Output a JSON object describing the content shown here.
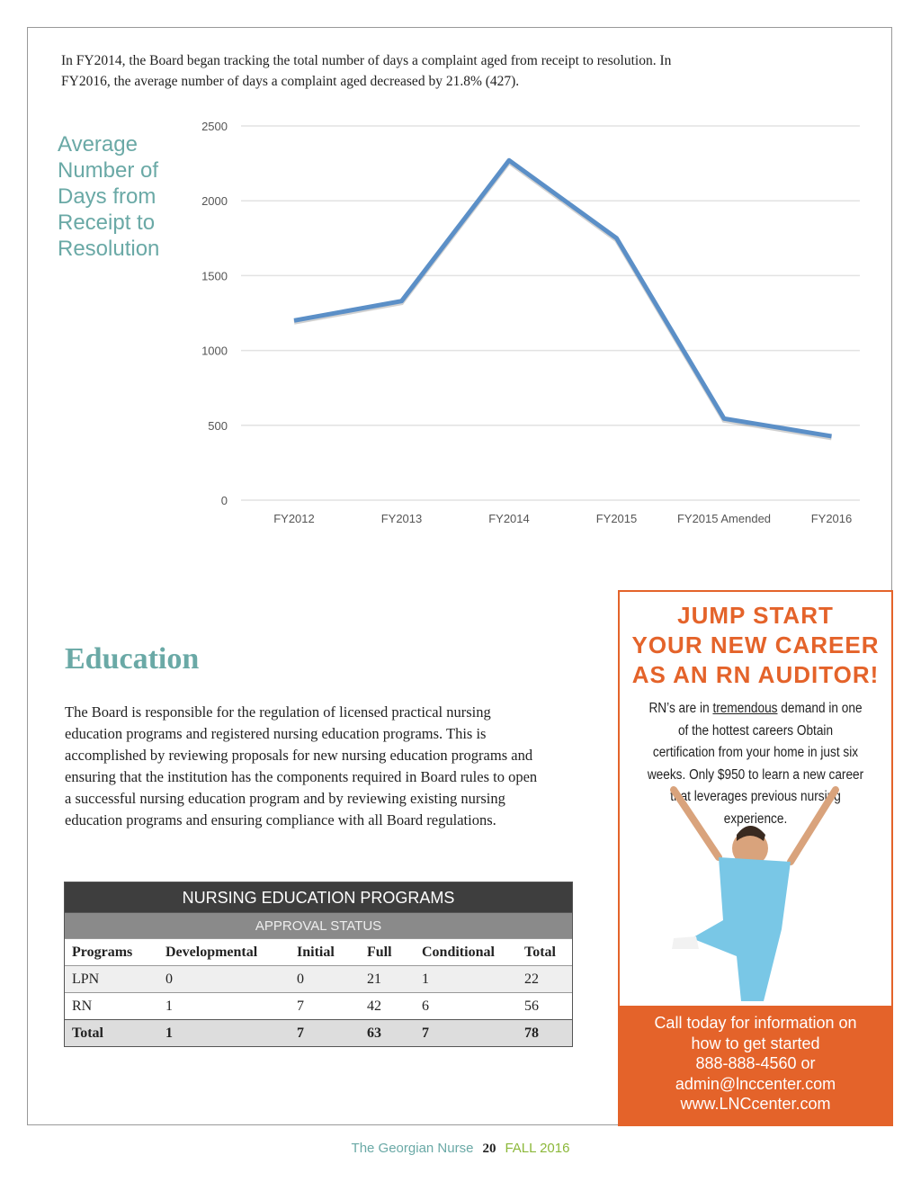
{
  "intro": "In FY2014, the Board began tracking the total number of days a complaint aged from receipt to resolution. In FY2016, the average number of days a complaint aged decreased by 21.8% (427).",
  "chart_title": "Average Number of Days from Receipt to Resolution",
  "chart_data": {
    "type": "line",
    "title": "Average Number of Days from Receipt to Resolution",
    "categories": [
      "FY2012",
      "FY2013",
      "FY2014",
      "FY2015",
      "FY2015 Amended",
      "FY2016"
    ],
    "values": [
      1200,
      1330,
      2270,
      1750,
      545,
      427
    ],
    "yticks": [
      "0",
      "500",
      "1000",
      "1500",
      "2000",
      "2500"
    ],
    "ylim": [
      0,
      2500
    ],
    "grid": true,
    "line_color": "#5b8fc7"
  },
  "education": {
    "heading": "Education",
    "body": "The Board is responsible for the regulation of licensed practical nursing education programs and registered nursing education programs. This is accomplished by reviewing proposals for new nursing education programs and ensuring that the institution has the components required in Board rules to open a successful nursing education program and by reviewing existing nursing education programs and ensuring compliance with all Board regulations."
  },
  "table": {
    "title": "NURSING EDUCATION PROGRAMS",
    "subtitle": "APPROVAL STATUS",
    "headers": [
      "Programs",
      "Developmental",
      "Initial",
      "Full",
      "Conditional",
      "Total"
    ],
    "rows": [
      [
        "LPN",
        "0",
        "0",
        "21",
        "1",
        "22"
      ],
      [
        "RN",
        "1",
        "7",
        "42",
        "6",
        "56"
      ]
    ],
    "total": [
      "Total",
      "1",
      "7",
      "63",
      "7",
      "78"
    ]
  },
  "ad": {
    "headline": [
      "JUMP START",
      "YOUR NEW CAREER",
      "AS AN RN AUDITOR!"
    ],
    "text_pre": "RN’s are in ",
    "text_underline": "tremendous",
    "text_post": " demand in one of the hottest careers Obtain certification from your home in just six weeks. Only $950 to learn a new career that leverages previous nursing experience.",
    "footer": [
      "Call today for information on",
      "how to get started",
      "888-888-4560 or",
      "admin@lnccenter.com",
      "www.LNCcenter.com"
    ],
    "accent": "#e4632a"
  },
  "footer": {
    "publication": "The Georgian Nurse",
    "page": "20",
    "issue": "FALL 2016"
  }
}
